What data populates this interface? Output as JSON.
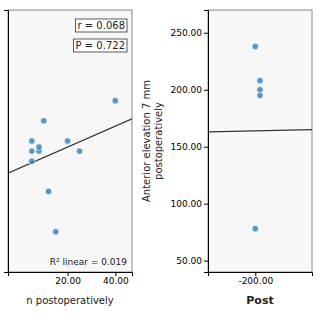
{
  "chart_data": [
    {
      "type": "scatter",
      "xlabel": "n postoperatively",
      "xlim": [
        -5,
        47
      ],
      "ylim": [
        100,
        230
      ],
      "xticks": [
        {
          "value": 20.0,
          "label": "20.00"
        },
        {
          "value": 40.0,
          "label": "40.00"
        }
      ],
      "yticks": [],
      "tick_labels": "x",
      "series": [
        {
          "type": "scatter",
          "x": [
            5,
            5,
            5,
            8,
            8,
            10,
            20,
            25,
            40,
            12,
            15
          ],
          "values": [
            155,
            160,
            165,
            160,
            162,
            175,
            165,
            160,
            185,
            140,
            120
          ]
        },
        {
          "type": "line",
          "x": [
            -5,
            47
          ],
          "values": [
            149.002,
            175.997
          ]
        }
      ],
      "annotations": [
        "r = 0.068",
        "P = 0.722",
        "R² linear = 0.019"
      ]
    },
    {
      "type": "scatter",
      "xlabel": "Post",
      "ylabel": "Anterior elevation 7 mm\npostoperatively",
      "xlim": [
        -250,
        -140
      ],
      "ylim": [
        40,
        270
      ],
      "xticks": [
        {
          "value": -200.0,
          "label": "-200.00"
        }
      ],
      "yticks": [
        {
          "value": 50.0,
          "label": "50.00"
        },
        {
          "value": 100.0,
          "label": "100.00"
        },
        {
          "value": 150.0,
          "label": "150.00"
        },
        {
          "value": 200.0,
          "label": "200.00"
        },
        {
          "value": 250.0,
          "label": "250.00"
        }
      ],
      "series": [
        {
          "type": "scatter",
          "x": [
            -200,
            -195,
            -195,
            -195,
            -200
          ],
          "values": [
            238,
            208,
            200,
            195,
            78
          ]
        },
        {
          "type": "line",
          "x": [
            -250,
            -140
          ],
          "values": [
            163,
            165
          ]
        }
      ]
    }
  ]
}
